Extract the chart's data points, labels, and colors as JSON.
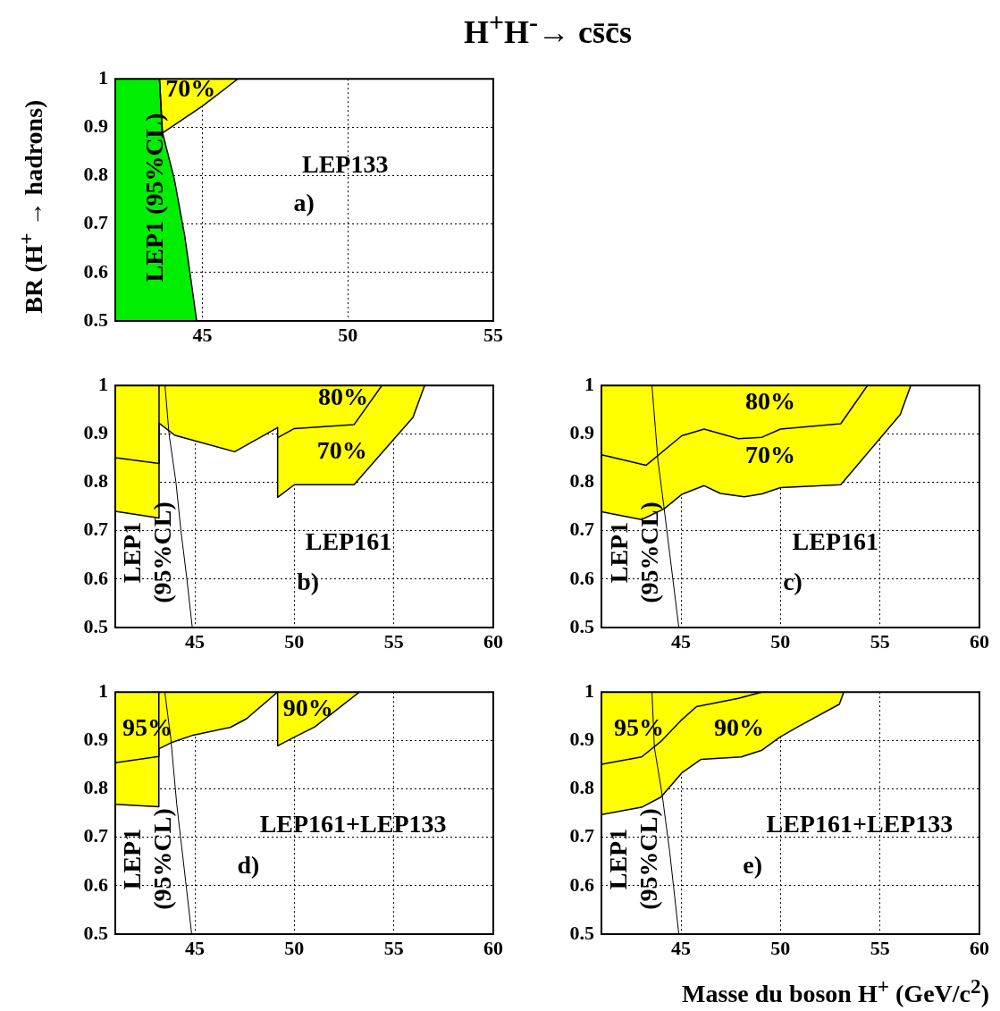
{
  "chart_data": [
    {
      "type": "area",
      "title": "H$^{+}$H$^{-}$→ cs̄c̄s",
      "ylabel": "BR (H$^{+}$ → hadrons)",
      "xlim": [
        42,
        55
      ],
      "xticks": [
        45,
        50,
        55
      ],
      "ylim": [
        0.5,
        1
      ],
      "yticks": [
        0.5,
        0.6,
        0.7,
        0.8,
        0.9,
        1
      ],
      "grid": true,
      "series": [
        {
          "color": "#00ee00",
          "x": [
            42,
            43.52,
            43.62,
            44.03,
            44.39,
            44.8
          ],
          "values": [
            1,
            1,
            0.89,
            0.793,
            0.675,
            0.5
          ]
        },
        {
          "color": "#ffff00",
          "x": [
            43.52,
            43.62,
            45,
            46.22
          ],
          "values": [
            1,
            0.888,
            0.944,
            1
          ]
        }
      ],
      "annotations": [
        "LEP1 (95%CL)",
        "70%",
        "LEP133",
        "a)"
      ]
    },
    {
      "type": "area",
      "xlim": [
        41,
        60
      ],
      "xticks": [
        45,
        50,
        55,
        60
      ],
      "ylim": [
        0.5,
        1
      ],
      "yticks": [
        0.5,
        0.6,
        0.7,
        0.8,
        0.9,
        1
      ],
      "grid": true,
      "series": [
        {
          "color": "#ffff00",
          "x": [
            41,
            41,
            43.2,
            43.2,
            44,
            47,
            49.16,
            49.16,
            50,
            53,
            55.96,
            56.55
          ],
          "values": [
            1,
            0.74,
            0.726,
            0.922,
            0.897,
            0.863,
            0.913,
            0.769,
            0.795,
            0.795,
            0.934,
            1
          ]
        },
        {
          "color": "#d6d600",
          "x": [
            41,
            41,
            43.2,
            43.2,
            46,
            49.16,
            50,
            53,
            54.4
          ],
          "values": [
            1,
            0.851,
            0.839,
            1,
            null,
            0.892,
            0.911,
            0.919,
            1
          ]
        },
        {
          "type": "line",
          "color": "#000000",
          "x": [
            43.5,
            43.7,
            44.05,
            44.3,
            44.6,
            44.87
          ],
          "values": [
            1,
            0.9,
            0.8,
            0.7,
            0.6,
            0.5
          ]
        }
      ],
      "annotations": [
        "LEP1 (95%CL)",
        "80%",
        "70%",
        "LEP161",
        "b)"
      ]
    },
    {
      "type": "area",
      "xlim": [
        41,
        60
      ],
      "xticks": [
        45,
        50,
        55,
        60
      ],
      "ylim": [
        0.5,
        1
      ],
      "yticks": [
        0.5,
        0.6,
        0.7,
        0.8,
        0.9,
        1
      ],
      "grid": true,
      "series": [
        {
          "color": "#ffff00",
          "x": [
            41,
            41,
            43.02,
            44.14,
            45.04,
            46.16,
            46.98,
            48.18,
            49.07,
            50,
            53.03,
            56.02,
            56.55
          ],
          "values": [
            1,
            0.739,
            0.723,
            0.745,
            0.775,
            0.793,
            0.777,
            0.77,
            0.776,
            0.789,
            0.795,
            0.94,
            1
          ]
        },
        {
          "color": "#d6d600",
          "x": [
            41,
            41,
            43.24,
            45.04,
            46.16,
            47.88,
            49.07,
            50,
            53.03,
            54.37
          ],
          "values": [
            1,
            0.857,
            0.835,
            0.896,
            0.91,
            0.89,
            0.893,
            0.91,
            0.921,
            1
          ]
        },
        {
          "type": "line",
          "color": "#000000",
          "x": [
            43.54,
            43.84,
            44.14,
            44.44,
            44.89
          ],
          "values": [
            1,
            0.845,
            0.75,
            0.65,
            0.5
          ]
        }
      ],
      "annotations": [
        "LEP1 (95%CL)",
        "80%",
        "70%",
        "LEP161",
        "c)"
      ]
    },
    {
      "type": "area",
      "xlim": [
        41,
        60
      ],
      "xticks": [
        45,
        50,
        55,
        60
      ],
      "ylim": [
        0.5,
        1
      ],
      "yticks": [
        0.5,
        0.6,
        0.7,
        0.8,
        0.9,
        1
      ],
      "grid": true,
      "series": [
        {
          "color": "#ffff00",
          "x": [
            41,
            41,
            43.19,
            43.19,
            43.79,
            44.91,
            46.78,
            47.6,
            49.16,
            49.16,
            50,
            51.03,
            53.27
          ],
          "values": [
            1,
            0.768,
            0.763,
            0.883,
            0.895,
            0.911,
            0.927,
            0.945,
            1,
            0.889,
            0.907,
            0.928,
            1
          ]
        },
        {
          "color": "#d6d600",
          "x": [
            41,
            41,
            43.19,
            43.19
          ],
          "values": [
            1,
            0.854,
            0.867,
            1
          ]
        },
        {
          "type": "line",
          "color": "#000000",
          "x": [
            43.49,
            43.79,
            44.09,
            44.46,
            44.84
          ],
          "values": [
            1,
            0.904,
            0.768,
            0.637,
            0.5
          ]
        }
      ],
      "annotations": [
        "LEP1 (95%CL)",
        "95%",
        "90%",
        "LEP161+LEP133",
        "d)"
      ]
    },
    {
      "type": "area",
      "xlabel": "Masse du boson H$^{+}$ (GeV/c$^{2}$)",
      "xlim": [
        41,
        60
      ],
      "xticks": [
        45,
        50,
        55,
        60
      ],
      "ylim": [
        0.5,
        1
      ],
      "yticks": [
        0.5,
        0.6,
        0.7,
        0.8,
        0.9,
        1
      ],
      "grid": true,
      "series": [
        {
          "color": "#ffff00",
          "x": [
            41,
            41,
            43.02,
            43.99,
            45.04,
            46.01,
            48.03,
            49.07,
            49.97,
            50.87,
            52.96,
            53.18
          ],
          "values": [
            1,
            0.747,
            0.762,
            0.783,
            0.833,
            0.861,
            0.866,
            0.88,
            0.907,
            0.928,
            0.975,
            1
          ]
        },
        {
          "color": "#d6d600",
          "x": [
            41,
            41,
            43.02,
            43.99,
            45.04,
            45.78,
            47.88,
            49.07
          ],
          "values": [
            1,
            0.851,
            0.866,
            0.898,
            0.943,
            0.97,
            0.987,
            1
          ]
        },
        {
          "type": "line",
          "color": "#000000",
          "x": [
            43.54,
            43.66,
            44.06,
            44.44,
            44.89
          ],
          "values": [
            1,
            0.886,
            0.786,
            0.667,
            0.5
          ]
        }
      ],
      "annotations": [
        "LEP1 (95%CL)",
        "95%",
        "90%",
        "LEP161+LEP133",
        "e)"
      ]
    }
  ]
}
